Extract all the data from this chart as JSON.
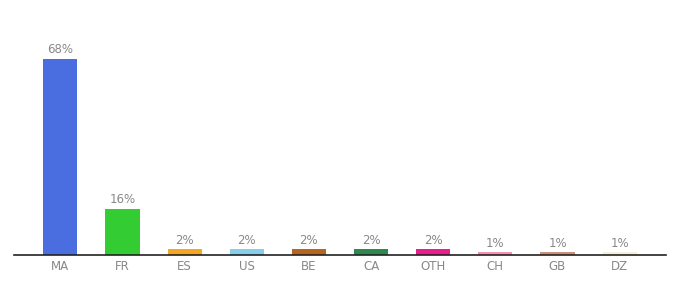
{
  "categories": [
    "MA",
    "FR",
    "ES",
    "US",
    "BE",
    "CA",
    "OTH",
    "CH",
    "GB",
    "DZ"
  ],
  "values": [
    68,
    16,
    2,
    2,
    2,
    2,
    2,
    1,
    1,
    1
  ],
  "bar_colors": [
    "#4a6ee0",
    "#33cc33",
    "#f5a623",
    "#87ceeb",
    "#b5651d",
    "#2d8a4e",
    "#e91e8c",
    "#f48fb1",
    "#c9907a",
    "#f5f0d8"
  ],
  "labels": [
    "68%",
    "16%",
    "2%",
    "2%",
    "2%",
    "2%",
    "2%",
    "1%",
    "1%",
    "1%"
  ],
  "background_color": "#ffffff",
  "label_fontsize": 8.5,
  "tick_fontsize": 8.5,
  "label_color": "#888888",
  "tick_color": "#888888",
  "bottom_spine_color": "#222222",
  "ylim": [
    0,
    80
  ],
  "bar_width": 0.55
}
